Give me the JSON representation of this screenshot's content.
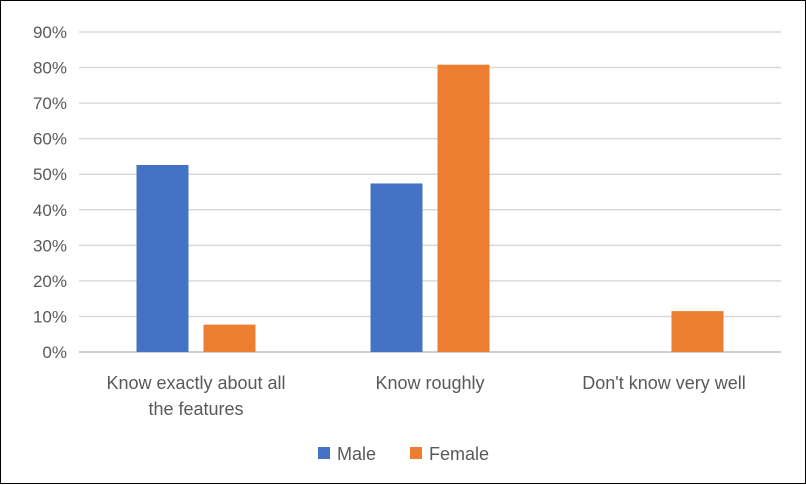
{
  "chart_data": {
    "type": "bar",
    "categories": [
      [
        "Know exactly about all",
        "the features"
      ],
      [
        "Know roughly"
      ],
      [
        "Don't know very well"
      ]
    ],
    "series": [
      {
        "name": "Male",
        "color": "#4472C4",
        "values": [
          52.6,
          47.4,
          0
        ]
      },
      {
        "name": "Female",
        "color": "#ED7D31",
        "values": [
          7.7,
          80.8,
          11.5
        ]
      }
    ],
    "ylim": [
      0,
      90
    ],
    "yticks": [
      0,
      10,
      20,
      30,
      40,
      50,
      60,
      70,
      80,
      90
    ],
    "ytick_labels": [
      "0%",
      "10%",
      "20%",
      "30%",
      "40%",
      "50%",
      "60%",
      "70%",
      "80%",
      "90%"
    ],
    "grid": true,
    "legend_position": "bottom",
    "title": "",
    "xlabel": "",
    "ylabel": ""
  }
}
